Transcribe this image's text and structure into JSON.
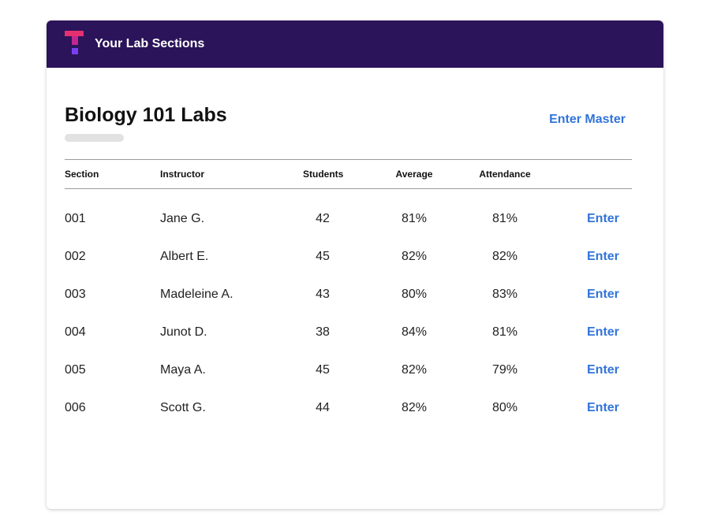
{
  "header": {
    "title": "Your Lab Sections",
    "colors": {
      "background": "#2b1459",
      "logo_top": "#e5306f",
      "logo_mid": "#c2268f",
      "logo_bottom": "#7b3ff2"
    }
  },
  "main": {
    "title": "Biology 101 Labs",
    "enter_master_label": "Enter Master",
    "accent_color": "#3274d9"
  },
  "table": {
    "columns": [
      "Section",
      "Instructor",
      "Students",
      "Average",
      "Attendance"
    ],
    "rows": [
      {
        "section": "001",
        "instructor": "Jane G.",
        "students": "42",
        "average": "81%",
        "attendance": "81%",
        "action": "Enter"
      },
      {
        "section": "002",
        "instructor": "Albert E.",
        "students": "45",
        "average": "82%",
        "attendance": "82%",
        "action": "Enter"
      },
      {
        "section": "003",
        "instructor": "Madeleine A.",
        "students": "43",
        "average": "80%",
        "attendance": "83%",
        "action": "Enter"
      },
      {
        "section": "004",
        "instructor": "Junot D.",
        "students": "38",
        "average": "84%",
        "attendance": "81%",
        "action": "Enter"
      },
      {
        "section": "005",
        "instructor": "Maya A.",
        "students": "45",
        "average": "82%",
        "attendance": "79%",
        "action": "Enter"
      },
      {
        "section": "006",
        "instructor": "Scott G.",
        "students": "44",
        "average": "82%",
        "attendance": "80%",
        "action": "Enter"
      }
    ]
  }
}
